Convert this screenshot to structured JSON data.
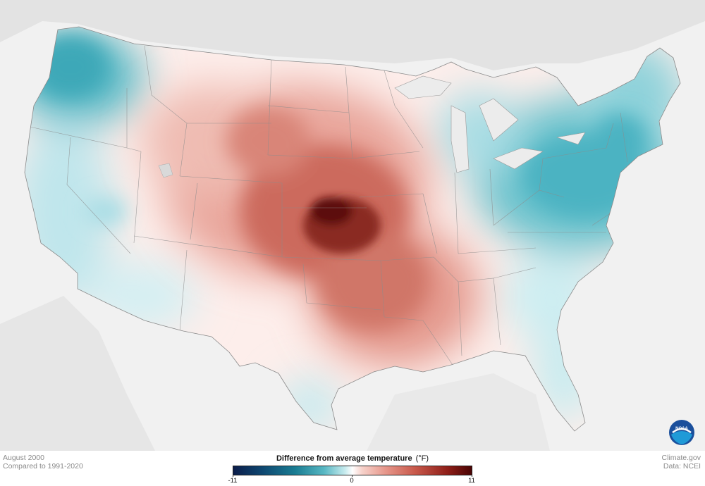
{
  "caption": {
    "date": "August 2000",
    "baseline": "Compared to 1991-2020"
  },
  "credit": {
    "source": "Climate.gov",
    "data": "Data: NCEI"
  },
  "legend": {
    "title": "Difference from average temperature",
    "unit": "(°F)",
    "min_label": "-11",
    "mid_label": "0",
    "max_label": "11",
    "min_value": -11,
    "max_value": 11,
    "colors": {
      "cold_extreme": "#0b1d4a",
      "cold": "#1a7d93",
      "neutral": "#ffffff",
      "warm": "#c95a4c",
      "warm_extreme": "#4a0404"
    }
  },
  "logo": {
    "name": "noaa-logo-icon",
    "text": "NOAA"
  }
}
